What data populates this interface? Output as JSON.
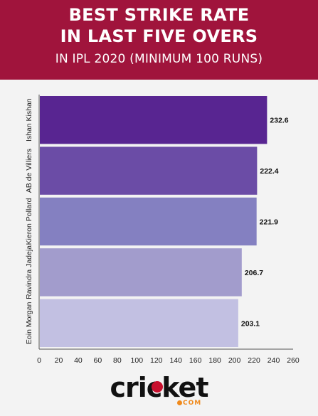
{
  "header": {
    "title_line1": "BEST STRIKE RATE",
    "title_line2": "IN LAST FIVE OVERS",
    "subtitle": "IN IPL 2020 (MINIMUM 100 RUNS)"
  },
  "brand": {
    "wordmark": "cricket",
    "suffix": "COM",
    "accent_color": "#f08a1c",
    "header_color": "#a0143c"
  },
  "chart_data": {
    "type": "bar",
    "orientation": "horizontal",
    "categories": [
      "Ishan Kishan",
      "AB de Villiers",
      "Kieron Pollard",
      "Ravindra Jadeja",
      "Eoin Morgan"
    ],
    "values": [
      232.6,
      222.4,
      221.9,
      206.7,
      203.1
    ],
    "value_labels": [
      "232.6",
      "222.4",
      "221.9",
      "206.7",
      "203.1"
    ],
    "colors": [
      "#582591",
      "#6b4ca6",
      "#8480c1",
      "#a29ccc",
      "#c2c0e2"
    ],
    "xlim": [
      0,
      260
    ],
    "xticks": [
      0,
      20,
      40,
      60,
      80,
      100,
      120,
      140,
      160,
      180,
      200,
      220,
      240,
      260
    ],
    "xtick_labels": [
      "0",
      "20",
      "40",
      "60",
      "80",
      "100",
      "120",
      "140",
      "160",
      "180",
      "200",
      "220",
      "240",
      "260"
    ],
    "grid": false,
    "legend": "none",
    "title": "",
    "xlabel": "",
    "ylabel": ""
  }
}
